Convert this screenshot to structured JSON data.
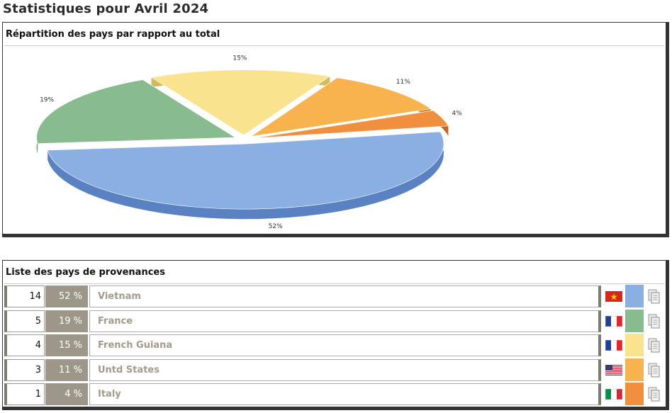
{
  "page_title": "Statistiques pour Avril 2024",
  "chart_panel": {
    "heading": "Répartition des pays par rapport au total"
  },
  "chart_data": {
    "type": "pie",
    "title": "",
    "slices": [
      {
        "label": "Vietnam",
        "value": 52,
        "text": "52%",
        "color": "#8ab0e3",
        "side": "#5a81c2"
      },
      {
        "label": "France",
        "value": 19,
        "text": "19%",
        "color": "#88bb8e",
        "side": "#5b9064"
      },
      {
        "label": "French Guiana",
        "value": 15,
        "text": "15%",
        "color": "#fae38e",
        "side": "#d2b95f"
      },
      {
        "label": "Untd States",
        "value": 11,
        "text": "11%",
        "color": "#f8b34f",
        "side": "#d08d28"
      },
      {
        "label": "Italy",
        "value": 4,
        "text": "4%",
        "color": "#f0903e",
        "side": "#c6651b"
      }
    ]
  },
  "list_panel": {
    "heading": "Liste des pays de provenances",
    "rows": [
      {
        "count": "14",
        "percent": "52 %",
        "country": "Vietnam",
        "flag": "vietnam-flag-icon",
        "color": "#8ab0e3"
      },
      {
        "count": "5",
        "percent": "19 %",
        "country": "France",
        "flag": "france-flag-icon",
        "color": "#88bb8e"
      },
      {
        "count": "4",
        "percent": "15 %",
        "country": "French Guiana",
        "flag": "france-flag-icon",
        "color": "#fae38e"
      },
      {
        "count": "3",
        "percent": "11 %",
        "country": "Untd States",
        "flag": "usa-flag-icon",
        "color": "#f8b34f"
      },
      {
        "count": "1",
        "percent": "4 %",
        "country": "Italy",
        "flag": "italy-flag-icon",
        "color": "#f0903e"
      }
    ]
  }
}
